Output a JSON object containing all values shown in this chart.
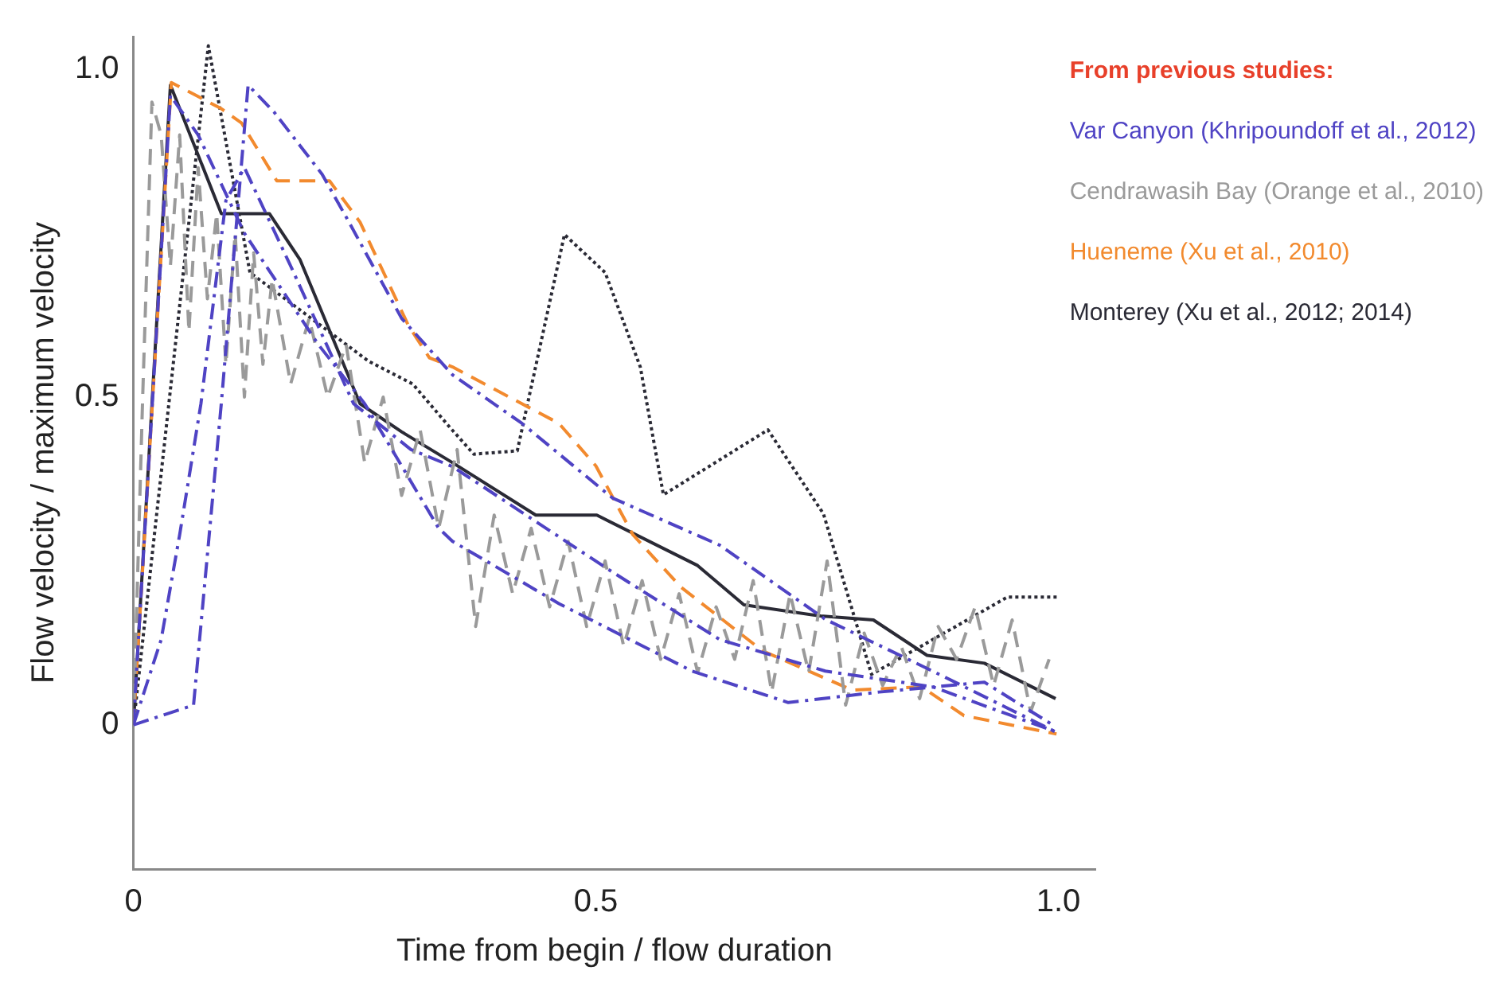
{
  "chart_data": {
    "type": "line",
    "xlabel": "Time from begin / flow duration",
    "ylabel": "Flow velocity / maximum velocity",
    "legend_title": "From previous studies:",
    "legend": "top right",
    "marker": "none",
    "xlim": [
      0,
      1.04
    ],
    "ylim": [
      -0.22,
      1.05
    ],
    "xticks": [
      0,
      0.5,
      {
        "value": 1,
        "label": "1.0"
      }
    ],
    "yticks": [
      0,
      0.5,
      {
        "value": 1,
        "label": "1.0"
      }
    ],
    "series": [
      {
        "name": "Var Canyon (Khripoundoff et al., 2012)",
        "color": "#4f43c4",
        "line_style": "dashdot",
        "x": [
          0,
          0.04,
          0.07,
          0.12,
          0.2,
          0.25,
          0.33,
          0.345,
          0.46,
          0.604,
          0.708,
          0.806,
          0.92,
          0.996
        ],
        "values": [
          0,
          0.96,
          0.9,
          0.75,
          0.58,
          0.49,
          0.3,
          0.28,
          0.185,
          0.082,
          0.034,
          0.05,
          0.065,
          -0.002
        ]
      },
      {
        "color": "#4f43c4",
        "line_style": "dashdot",
        "x": [
          0,
          0.065,
          0.095,
          0.124,
          0.152,
          0.204,
          0.233,
          0.29,
          0.345,
          0.42,
          0.518,
          0.634,
          0.748,
          0.864,
          0.996
        ],
        "values": [
          0,
          0.03,
          0.49,
          0.976,
          0.935,
          0.84,
          0.767,
          0.62,
          0.534,
          0.46,
          0.346,
          0.274,
          0.161,
          0.082,
          -0.01
        ]
      },
      {
        "color": "#4f43c4",
        "line_style": "dashdot",
        "x": [
          0,
          0.03,
          0.05,
          0.073,
          0.1,
          0.12,
          0.17,
          0.238,
          0.3,
          0.345,
          0.518,
          0.634,
          0.748,
          0.864,
          0.996
        ],
        "values": [
          0,
          0.13,
          0.29,
          0.49,
          0.8,
          0.85,
          0.7,
          0.49,
          0.42,
          0.394,
          0.233,
          0.13,
          0.082,
          0.058,
          -0.01
        ]
      },
      {
        "name": "Cendrawasih Bay (Orange et al., 2010)",
        "color": "#9a9a9a",
        "line_style": "dashed",
        "x": [
          0,
          0.01,
          0.02,
          0.03,
          0.04,
          0.05,
          0.06,
          0.07,
          0.08,
          0.09,
          0.1,
          0.11,
          0.12,
          0.13,
          0.14,
          0.15,
          0.17,
          0.19,
          0.21,
          0.23,
          0.25,
          0.27,
          0.29,
          0.31,
          0.33,
          0.35,
          0.37,
          0.39,
          0.41,
          0.43,
          0.45,
          0.47,
          0.49,
          0.51,
          0.53,
          0.55,
          0.57,
          0.59,
          0.61,
          0.63,
          0.65,
          0.67,
          0.69,
          0.71,
          0.73,
          0.75,
          0.77,
          0.79,
          0.81,
          0.83,
          0.85,
          0.87,
          0.89,
          0.91,
          0.93,
          0.95,
          0.97,
          0.99
        ],
        "values": [
          0,
          0.5,
          0.95,
          0.9,
          0.7,
          0.9,
          0.6,
          0.85,
          0.65,
          0.78,
          0.55,
          0.75,
          0.5,
          0.72,
          0.55,
          0.68,
          0.52,
          0.62,
          0.5,
          0.58,
          0.4,
          0.5,
          0.35,
          0.45,
          0.3,
          0.42,
          0.15,
          0.32,
          0.2,
          0.3,
          0.18,
          0.28,
          0.15,
          0.25,
          0.12,
          0.22,
          0.1,
          0.2,
          0.08,
          0.18,
          0.1,
          0.22,
          0.05,
          0.2,
          0.08,
          0.25,
          0.03,
          0.14,
          0.06,
          0.12,
          0.04,
          0.15,
          0.1,
          0.18,
          0.06,
          0.16,
          0.02,
          0.1
        ]
      },
      {
        "name": "Hueneme (Xu et al., 2010)",
        "color": "#f28a2e",
        "line_style": "dashed",
        "x": [
          0,
          0.041,
          0.095,
          0.117,
          0.155,
          0.212,
          0.245,
          0.297,
          0.32,
          0.345,
          0.46,
          0.5,
          0.54,
          0.592,
          0.68,
          0.777,
          0.852,
          0.898,
          0.998
        ],
        "values": [
          0,
          0.98,
          0.94,
          0.918,
          0.83,
          0.83,
          0.767,
          0.61,
          0.56,
          0.546,
          0.46,
          0.395,
          0.29,
          0.21,
          0.113,
          0.053,
          0.058,
          0.014,
          -0.014
        ]
      },
      {
        "name": "Monterey (Xu et al., 2012; 2014)",
        "color": "#2a2a35",
        "line_style": "solid",
        "x": [
          0,
          0.04,
          0.095,
          0.147,
          0.18,
          0.245,
          0.29,
          0.345,
          0.435,
          0.501,
          0.61,
          0.66,
          0.743,
          0.8,
          0.858,
          0.92,
          0.997
        ],
        "values": [
          0,
          0.976,
          0.78,
          0.78,
          0.71,
          0.49,
          0.447,
          0.4,
          0.32,
          0.32,
          0.243,
          0.183,
          0.166,
          0.16,
          0.106,
          0.094,
          0.04
        ]
      },
      {
        "color": "#2a2a35",
        "line_style": "dotted",
        "x": [
          0,
          0.081,
          0.126,
          0.254,
          0.302,
          0.342,
          0.368,
          0.415,
          0.466,
          0.51,
          0.548,
          0.573,
          0.686,
          0.746,
          0.798,
          0.945,
          1.0
        ],
        "values": [
          0,
          1.036,
          0.69,
          0.555,
          0.52,
          0.454,
          0.413,
          0.418,
          0.748,
          0.69,
          0.546,
          0.351,
          0.45,
          0.322,
          0.077,
          0.195,
          0.195
        ]
      }
    ]
  }
}
